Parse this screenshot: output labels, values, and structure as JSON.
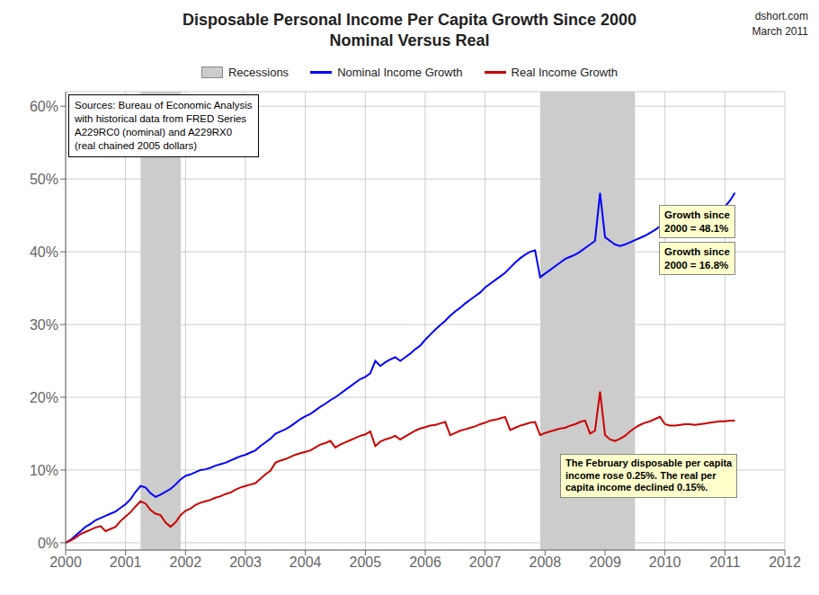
{
  "chart_data": {
    "type": "line",
    "title": "Disposable Personal Income Per Capita Growth Since 2000",
    "subtitle": "Nominal Versus Real",
    "watermark": [
      "dshort.com",
      "March 2011"
    ],
    "source": "Sources: Bureau of Economic Analysis\nwith historical data from FRED Series\nA229RC0 (nominal) and A229RX0\n(real chained 2005 dollars)",
    "annotations": [
      "Growth since\n2000 = 48.1%",
      "Growth since\n2000 = 16.8%",
      "The February disposable per capita\nincome rose 0.25%. The real per\ncapita income declined 0.15%."
    ],
    "xlim": [
      2000.0,
      2012.0
    ],
    "ylim": [
      -0.01,
      0.62
    ],
    "xticks": [
      2000,
      2001,
      2002,
      2003,
      2004,
      2005,
      2006,
      2007,
      2008,
      2009,
      2010,
      2011,
      2012
    ],
    "yticks": [
      {
        "value": 0.0,
        "label": "0%"
      },
      {
        "value": 0.1,
        "label": "10%"
      },
      {
        "value": 0.2,
        "label": "20%"
      },
      {
        "value": 0.3,
        "label": "30%"
      },
      {
        "value": 0.4,
        "label": "40%"
      },
      {
        "value": 0.5,
        "label": "50%"
      },
      {
        "value": 0.6,
        "label": "60%"
      }
    ],
    "grid": true,
    "recessions": {
      "name": "Recessions",
      "color": "#CCCCCC",
      "bands": [
        [
          2001.25,
          2001.92
        ],
        [
          2007.92,
          2009.5
        ]
      ]
    },
    "x": [
      2000.0,
      2000.083,
      2000.167,
      2000.25,
      2000.333,
      2000.417,
      2000.5,
      2000.583,
      2000.667,
      2000.75,
      2000.833,
      2000.917,
      2001.0,
      2001.083,
      2001.167,
      2001.25,
      2001.333,
      2001.417,
      2001.5,
      2001.583,
      2001.667,
      2001.75,
      2001.833,
      2001.917,
      2002.0,
      2002.083,
      2002.167,
      2002.25,
      2002.333,
      2002.417,
      2002.5,
      2002.583,
      2002.667,
      2002.75,
      2002.833,
      2002.917,
      2003.0,
      2003.083,
      2003.167,
      2003.25,
      2003.333,
      2003.417,
      2003.5,
      2003.583,
      2003.667,
      2003.75,
      2003.833,
      2003.917,
      2004.0,
      2004.083,
      2004.167,
      2004.25,
      2004.333,
      2004.417,
      2004.5,
      2004.583,
      2004.667,
      2004.75,
      2004.833,
      2004.917,
      2005.0,
      2005.083,
      2005.167,
      2005.25,
      2005.333,
      2005.417,
      2005.5,
      2005.583,
      2005.667,
      2005.75,
      2005.833,
      2005.917,
      2006.0,
      2006.083,
      2006.167,
      2006.25,
      2006.333,
      2006.417,
      2006.5,
      2006.583,
      2006.667,
      2006.75,
      2006.833,
      2006.917,
      2007.0,
      2007.083,
      2007.167,
      2007.25,
      2007.333,
      2007.417,
      2007.5,
      2007.583,
      2007.667,
      2007.75,
      2007.833,
      2007.917,
      2008.0,
      2008.083,
      2008.167,
      2008.25,
      2008.333,
      2008.417,
      2008.5,
      2008.583,
      2008.667,
      2008.75,
      2008.833,
      2008.917,
      2009.0,
      2009.083,
      2009.167,
      2009.25,
      2009.333,
      2009.417,
      2009.5,
      2009.583,
      2009.667,
      2009.75,
      2009.833,
      2009.917,
      2010.0,
      2010.083,
      2010.167,
      2010.25,
      2010.333,
      2010.417,
      2010.5,
      2010.583,
      2010.667,
      2010.75,
      2010.833,
      2010.917,
      2011.0,
      2011.083,
      2011.167
    ],
    "series": [
      {
        "name": "Nominal Income Growth",
        "color": "#0000FF",
        "values": [
          0.0,
          0.004,
          0.01,
          0.016,
          0.022,
          0.026,
          0.031,
          0.034,
          0.037,
          0.04,
          0.043,
          0.048,
          0.053,
          0.06,
          0.07,
          0.078,
          0.076,
          0.068,
          0.063,
          0.066,
          0.07,
          0.074,
          0.08,
          0.087,
          0.092,
          0.094,
          0.097,
          0.1,
          0.101,
          0.103,
          0.106,
          0.108,
          0.11,
          0.113,
          0.116,
          0.119,
          0.121,
          0.124,
          0.127,
          0.133,
          0.138,
          0.143,
          0.15,
          0.153,
          0.156,
          0.16,
          0.165,
          0.17,
          0.174,
          0.177,
          0.182,
          0.187,
          0.191,
          0.196,
          0.2,
          0.205,
          0.21,
          0.215,
          0.22,
          0.225,
          0.228,
          0.233,
          0.25,
          0.243,
          0.248,
          0.252,
          0.255,
          0.25,
          0.255,
          0.26,
          0.266,
          0.271,
          0.279,
          0.286,
          0.293,
          0.299,
          0.305,
          0.312,
          0.318,
          0.323,
          0.329,
          0.334,
          0.339,
          0.344,
          0.351,
          0.356,
          0.361,
          0.366,
          0.371,
          0.378,
          0.385,
          0.391,
          0.396,
          0.4,
          0.402,
          0.365,
          0.37,
          0.375,
          0.38,
          0.385,
          0.39,
          0.393,
          0.396,
          0.4,
          0.405,
          0.41,
          0.415,
          0.481,
          0.42,
          0.415,
          0.41,
          0.408,
          0.41,
          0.413,
          0.416,
          0.419,
          0.422,
          0.426,
          0.43,
          0.435,
          0.439,
          0.441,
          0.443,
          0.444,
          0.446,
          0.447,
          0.448,
          0.45,
          0.452,
          0.453,
          0.456,
          0.459,
          0.462,
          0.47,
          0.481
        ]
      },
      {
        "name": "Real Income Growth",
        "color": "#CC0000",
        "values": [
          0.0,
          0.003,
          0.007,
          0.012,
          0.015,
          0.018,
          0.021,
          0.023,
          0.016,
          0.019,
          0.022,
          0.03,
          0.036,
          0.042,
          0.05,
          0.057,
          0.054,
          0.045,
          0.04,
          0.038,
          0.028,
          0.022,
          0.028,
          0.038,
          0.044,
          0.047,
          0.052,
          0.055,
          0.057,
          0.059,
          0.062,
          0.064,
          0.067,
          0.069,
          0.073,
          0.076,
          0.078,
          0.08,
          0.082,
          0.088,
          0.094,
          0.099,
          0.11,
          0.113,
          0.115,
          0.118,
          0.121,
          0.123,
          0.125,
          0.127,
          0.131,
          0.135,
          0.137,
          0.14,
          0.131,
          0.135,
          0.138,
          0.141,
          0.144,
          0.147,
          0.149,
          0.153,
          0.133,
          0.139,
          0.142,
          0.144,
          0.147,
          0.142,
          0.146,
          0.15,
          0.154,
          0.157,
          0.159,
          0.161,
          0.162,
          0.164,
          0.166,
          0.148,
          0.151,
          0.154,
          0.156,
          0.158,
          0.16,
          0.163,
          0.165,
          0.168,
          0.169,
          0.171,
          0.173,
          0.155,
          0.158,
          0.161,
          0.163,
          0.165,
          0.166,
          0.148,
          0.151,
          0.153,
          0.155,
          0.157,
          0.158,
          0.161,
          0.163,
          0.166,
          0.168,
          0.15,
          0.154,
          0.208,
          0.148,
          0.142,
          0.14,
          0.143,
          0.147,
          0.153,
          0.158,
          0.162,
          0.165,
          0.167,
          0.17,
          0.173,
          0.163,
          0.161,
          0.161,
          0.162,
          0.163,
          0.163,
          0.162,
          0.163,
          0.164,
          0.165,
          0.166,
          0.167,
          0.167,
          0.168,
          0.168
        ]
      }
    ]
  }
}
